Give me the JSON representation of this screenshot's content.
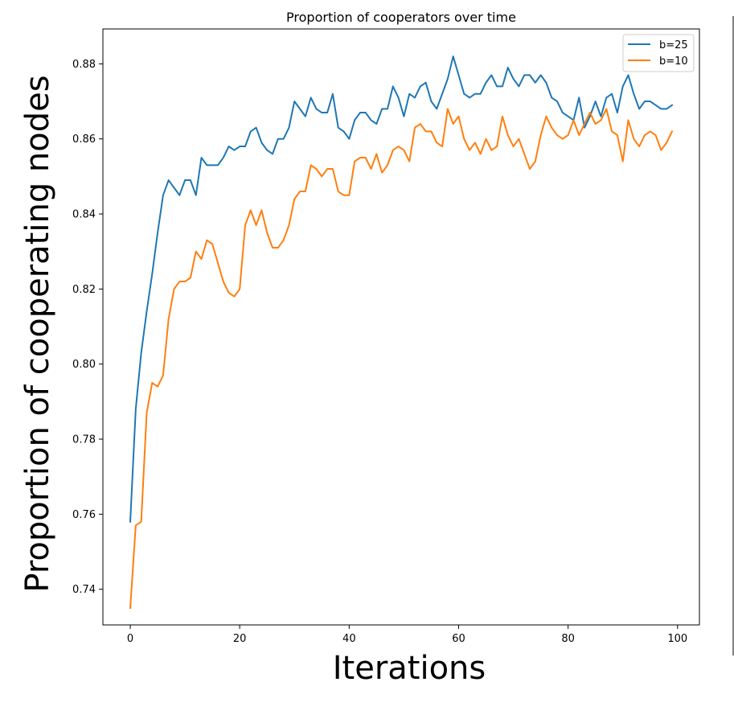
{
  "chart_data": {
    "type": "line",
    "title": "Proportion of cooperators over time",
    "xlabel": "Iterations",
    "ylabel": "Proportion of cooperating nodes",
    "xlim": [
      -5,
      104
    ],
    "ylim": [
      0.7305,
      0.8893
    ],
    "xticks": [
      0,
      20,
      40,
      60,
      80,
      100
    ],
    "xtick_labels": [
      "0",
      "20",
      "40",
      "60",
      "80",
      "100"
    ],
    "yticks": [
      0.74,
      0.76,
      0.78,
      0.8,
      0.82,
      0.84,
      0.86,
      0.88
    ],
    "ytick_labels": [
      "0.74",
      "0.76",
      "0.78",
      "0.80",
      "0.82",
      "0.84",
      "0.86",
      "0.88"
    ],
    "grid": false,
    "legend_position": "top-right",
    "series": [
      {
        "name": "b=25",
        "color": "#1f77b4",
        "values": [
          0.758,
          0.788,
          0.803,
          0.814,
          0.824,
          0.835,
          0.845,
          0.849,
          0.847,
          0.845,
          0.849,
          0.849,
          0.845,
          0.855,
          0.853,
          0.853,
          0.853,
          0.855,
          0.858,
          0.857,
          0.858,
          0.858,
          0.862,
          0.863,
          0.859,
          0.857,
          0.856,
          0.86,
          0.86,
          0.863,
          0.87,
          0.868,
          0.866,
          0.871,
          0.868,
          0.867,
          0.867,
          0.872,
          0.863,
          0.862,
          0.86,
          0.865,
          0.867,
          0.867,
          0.865,
          0.864,
          0.868,
          0.868,
          0.874,
          0.871,
          0.866,
          0.872,
          0.871,
          0.874,
          0.875,
          0.87,
          0.868,
          0.872,
          0.876,
          0.882,
          0.877,
          0.872,
          0.871,
          0.872,
          0.872,
          0.875,
          0.877,
          0.874,
          0.874,
          0.879,
          0.876,
          0.874,
          0.877,
          0.877,
          0.875,
          0.877,
          0.875,
          0.871,
          0.87,
          0.867,
          0.866,
          0.865,
          0.871,
          0.863,
          0.866,
          0.87,
          0.866,
          0.871,
          0.872,
          0.867,
          0.874,
          0.877,
          0.872,
          0.868,
          0.87,
          0.87,
          0.869,
          0.868,
          0.868,
          0.869
        ]
      },
      {
        "name": "b=10",
        "color": "#ff7f0e",
        "values": [
          0.735,
          0.757,
          0.758,
          0.787,
          0.795,
          0.794,
          0.797,
          0.812,
          0.82,
          0.822,
          0.822,
          0.823,
          0.83,
          0.828,
          0.833,
          0.832,
          0.827,
          0.822,
          0.819,
          0.818,
          0.82,
          0.837,
          0.841,
          0.837,
          0.841,
          0.835,
          0.831,
          0.831,
          0.833,
          0.837,
          0.844,
          0.846,
          0.846,
          0.853,
          0.852,
          0.85,
          0.852,
          0.852,
          0.846,
          0.845,
          0.845,
          0.854,
          0.855,
          0.855,
          0.852,
          0.856,
          0.851,
          0.853,
          0.857,
          0.858,
          0.857,
          0.854,
          0.863,
          0.864,
          0.862,
          0.862,
          0.859,
          0.858,
          0.868,
          0.864,
          0.866,
          0.86,
          0.857,
          0.859,
          0.856,
          0.86,
          0.857,
          0.858,
          0.866,
          0.861,
          0.858,
          0.86,
          0.856,
          0.852,
          0.854,
          0.861,
          0.866,
          0.863,
          0.861,
          0.86,
          0.861,
          0.865,
          0.861,
          0.864,
          0.867,
          0.864,
          0.865,
          0.868,
          0.862,
          0.861,
          0.854,
          0.865,
          0.86,
          0.858,
          0.861,
          0.862,
          0.861,
          0.857,
          0.859,
          0.862
        ]
      }
    ]
  }
}
